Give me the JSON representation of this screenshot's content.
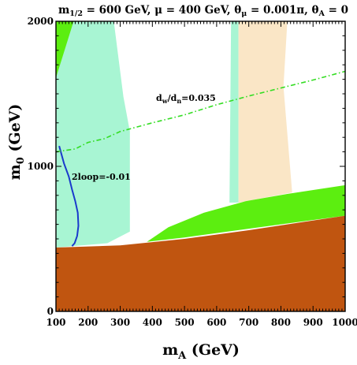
{
  "chart_data": {
    "type": "area",
    "title": "m_{1/2} = 600 GeV, μ = 400 GeV, θ_μ = 0.001π, θ_A = 0",
    "title_parts": {
      "m": "m",
      "m_sub": "1/2",
      "m_val": " = 600 GeV, μ = 400 GeV, θ",
      "theta_mu_sub": "μ",
      "theta_mu_val": " = 0.001π, θ",
      "theta_a_sub": "A",
      "theta_a_val": " = 0"
    },
    "xlabel": "m_A (GeV)",
    "xlabel_parts": {
      "main": "m",
      "sub": "A",
      "rest": " (GeV)"
    },
    "ylabel": "m_0 (GeV)",
    "ylabel_parts": {
      "main": "m",
      "sub": "0",
      "rest": " (GeV)"
    },
    "xlim": [
      100,
      1000
    ],
    "ylim": [
      0,
      2000
    ],
    "x_ticks": [
      100,
      200,
      300,
      400,
      500,
      600,
      700,
      800,
      900,
      1000
    ],
    "y_ticks": [
      0,
      1000,
      2000
    ],
    "grid": false,
    "colors": {
      "light_green": "#a8f5d3",
      "peach": "#fae6c6",
      "bright_green": "#5cee10",
      "brown": "#c05510",
      "blue_line": "#1a3acc",
      "dashdot_line": "#33dd22"
    },
    "regions": [
      {
        "name": "light-green-left",
        "color": "light_green",
        "points": [
          [
            100,
            2000
          ],
          [
            280,
            2000
          ],
          [
            310,
            1480
          ],
          [
            330,
            1240
          ],
          [
            330,
            550
          ],
          [
            260,
            470
          ],
          [
            100,
            440
          ]
        ]
      },
      {
        "name": "light-green-right",
        "color": "light_green",
        "points": [
          [
            645,
            2000
          ],
          [
            668,
            2000
          ],
          [
            668,
            750
          ],
          [
            640,
            750
          ]
        ]
      },
      {
        "name": "peach-band",
        "color": "peach",
        "points": [
          [
            668,
            2000
          ],
          [
            820,
            2000
          ],
          [
            808,
            1550
          ],
          [
            835,
            820
          ],
          [
            668,
            750
          ]
        ]
      },
      {
        "name": "green-top-left",
        "color": "bright_green",
        "points": [
          [
            100,
            2000
          ],
          [
            155,
            2000
          ],
          [
            100,
            1610
          ]
        ]
      },
      {
        "name": "green-lower",
        "color": "bright_green",
        "points": [
          [
            383,
            480
          ],
          [
            450,
            580
          ],
          [
            560,
            680
          ],
          [
            690,
            760
          ],
          [
            820,
            810
          ],
          [
            1000,
            870
          ],
          [
            1000,
            660
          ],
          [
            700,
            570
          ],
          [
            500,
            510
          ]
        ]
      },
      {
        "name": "brown-region",
        "color": "brown",
        "points": [
          [
            100,
            440
          ],
          [
            300,
            455
          ],
          [
            500,
            500
          ],
          [
            700,
            560
          ],
          [
            1000,
            660
          ],
          [
            1000,
            0
          ],
          [
            100,
            0
          ]
        ]
      }
    ],
    "series": [
      {
        "name": "2loop=-0.01",
        "style": "solid",
        "color": "blue_line",
        "x": [
          110,
          125,
          140,
          150,
          160,
          168,
          170,
          166,
          158,
          150
        ],
        "y": [
          1140,
          1020,
          930,
          840,
          760,
          680,
          590,
          520,
          470,
          450
        ]
      },
      {
        "name": "d_w/d_n=0.035",
        "style": "dash-dot",
        "color": "dashdot_line",
        "x": [
          100,
          160,
          200,
          250,
          300,
          400,
          500,
          600,
          700,
          800,
          900,
          1000
        ],
        "y": [
          1100,
          1120,
          1165,
          1190,
          1240,
          1300,
          1355,
          1425,
          1485,
          1540,
          1595,
          1655
        ]
      }
    ],
    "annotations": {
      "twoloop": "2loop=-0.01",
      "dw_d": "d",
      "dw_sub1": "w",
      "dw_slash": "/d",
      "dw_sub2": "n",
      "dw_val": "=0.035"
    }
  }
}
